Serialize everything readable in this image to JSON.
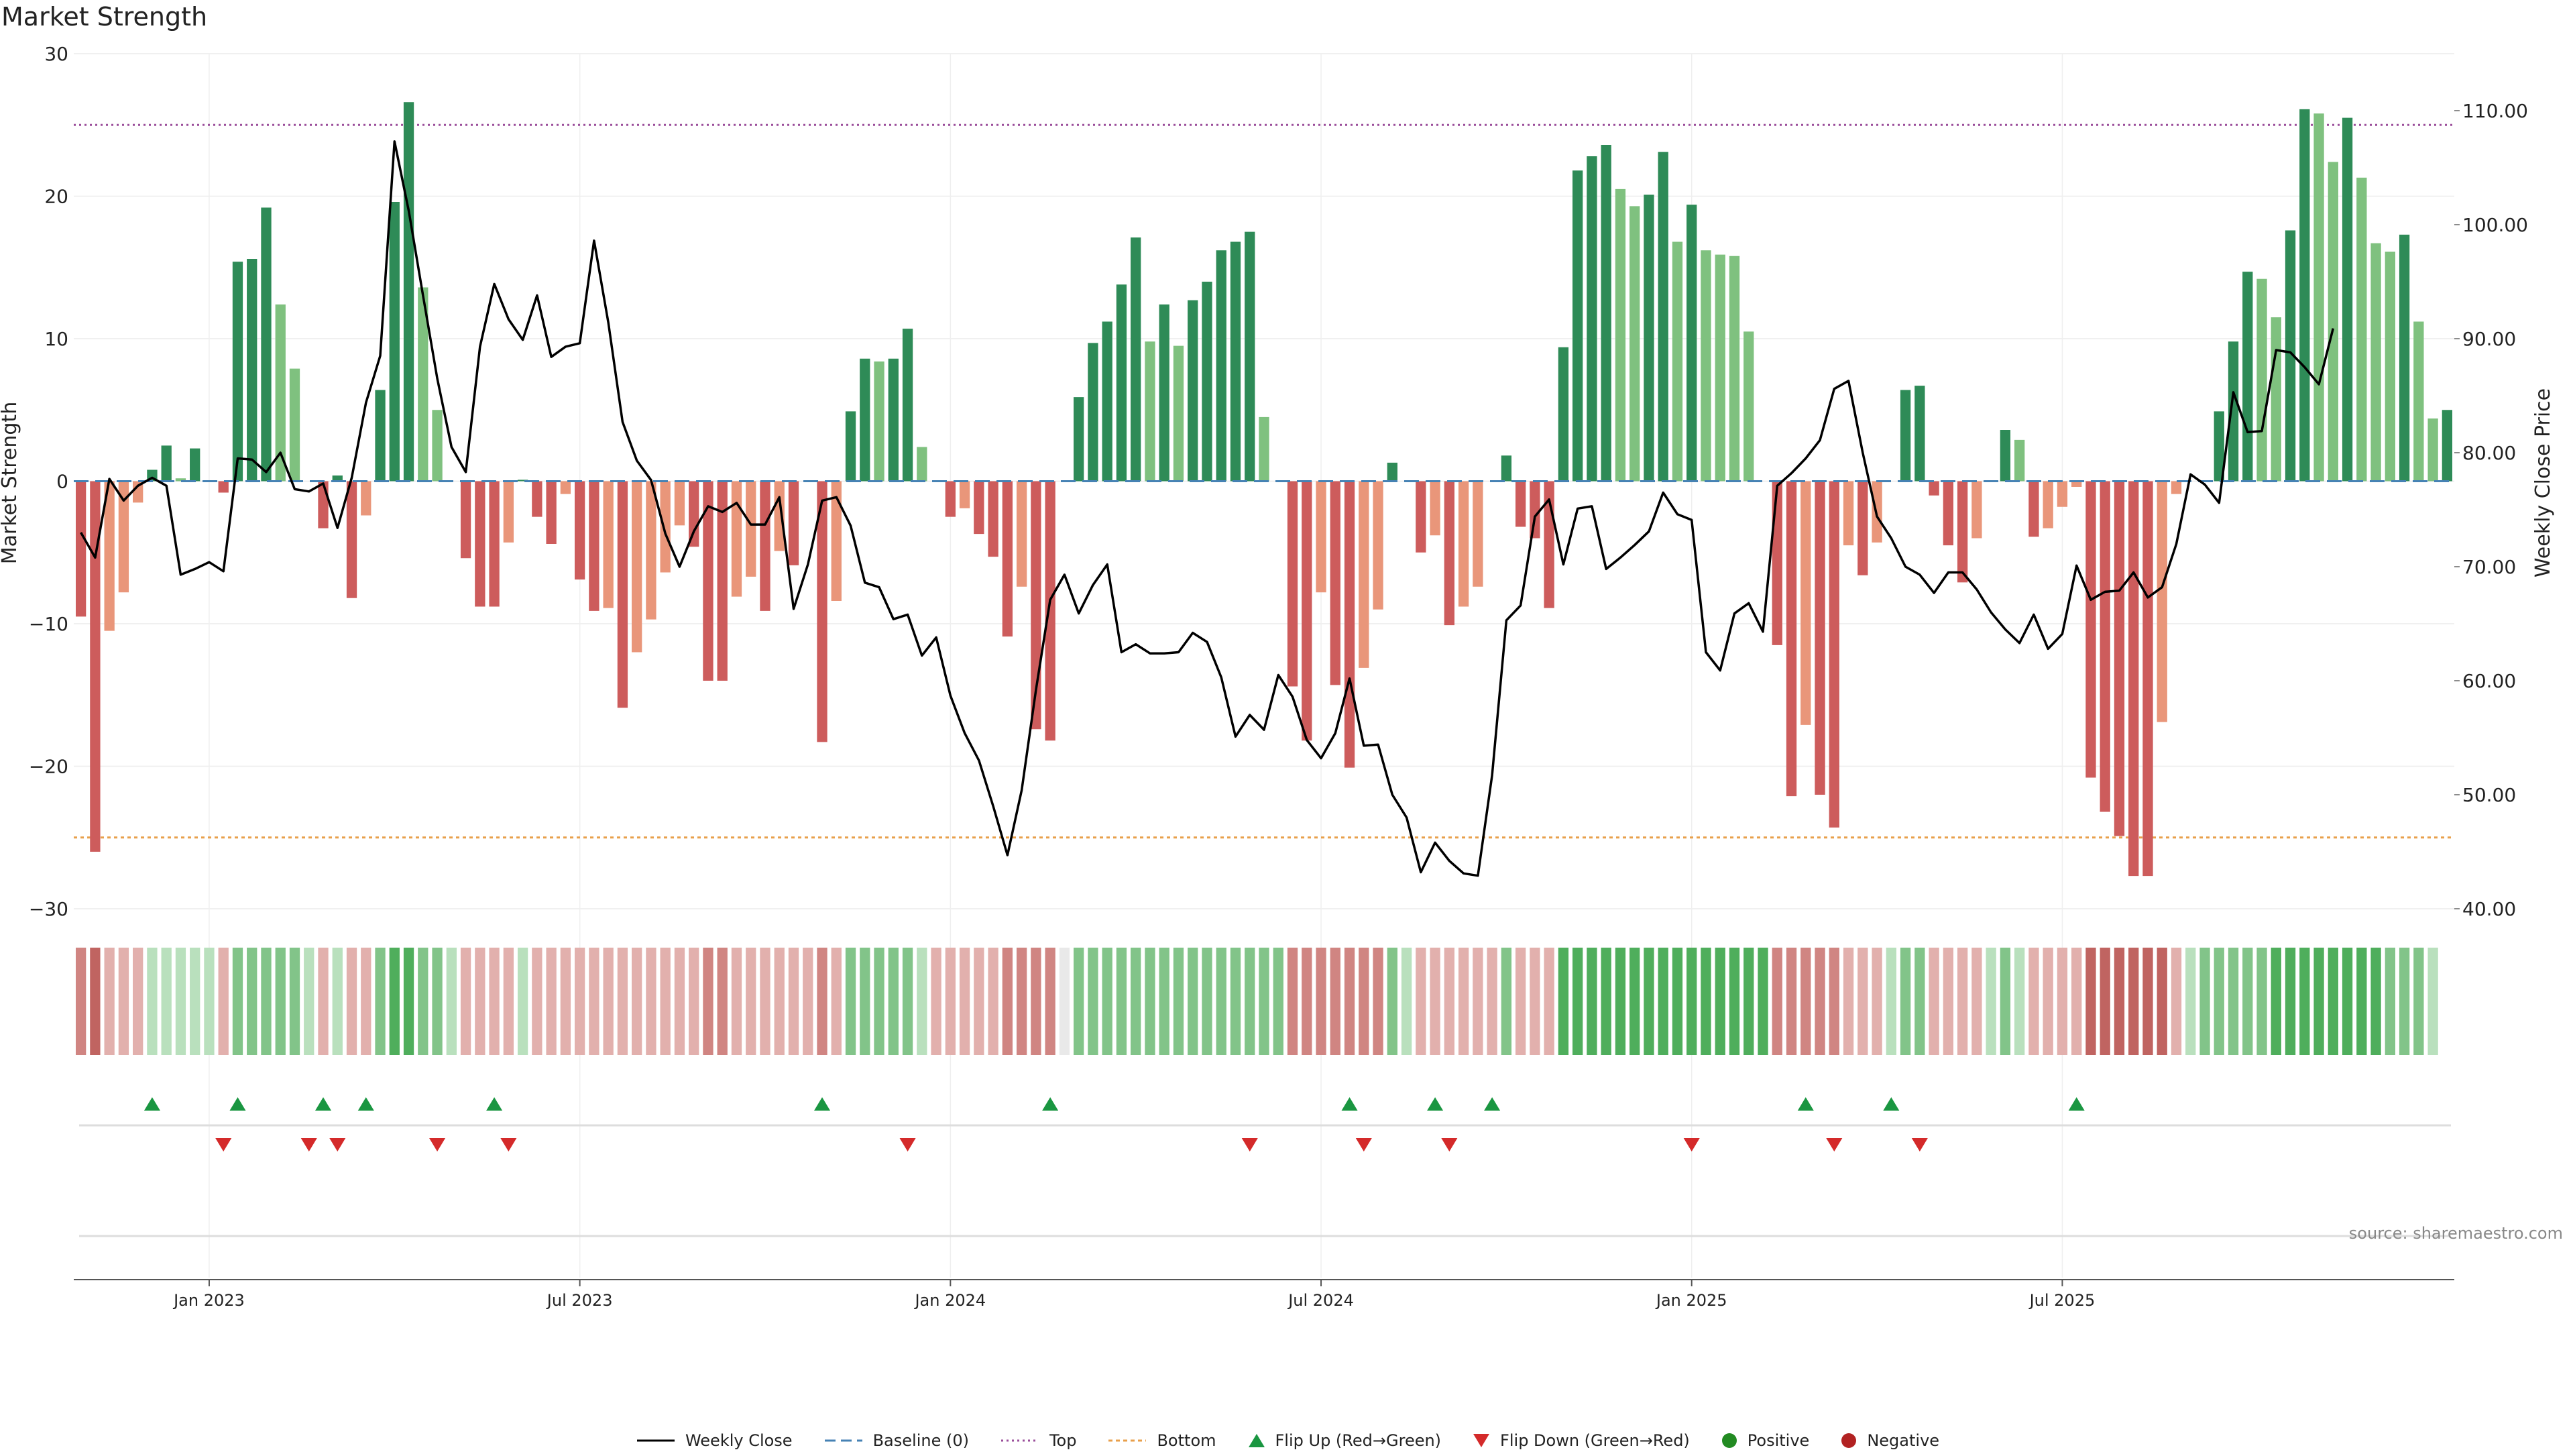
{
  "chart_data": {
    "type": "bar",
    "title": "Market Strength",
    "ylabel": "Market Strength",
    "y2label": "Weekly Close Price",
    "ylim": [
      -30,
      30
    ],
    "y2lim": [
      40,
      115
    ],
    "top_threshold": 25,
    "bottom_threshold": -25,
    "y_ticks": [
      30,
      20,
      10,
      0,
      -10,
      -20,
      -30
    ],
    "y_tick_labels": [
      "30",
      "20",
      "10",
      "0",
      "−10",
      "−20",
      "−30"
    ],
    "y2_ticks": [
      110,
      100,
      90,
      80,
      70,
      60,
      50,
      40
    ],
    "y2_tick_labels": [
      "110.00",
      "100.00",
      "90.00",
      "80.00",
      "70.00",
      "60.00",
      "50.00",
      "40.00"
    ],
    "x_ticks": [
      "Jan 2023",
      "Jul 2023",
      "Jan 2024",
      "Jul 2024",
      "Jan 2025",
      "Jul 2025"
    ],
    "x_tick_weeks": [
      9,
      35,
      61,
      87,
      113,
      139
    ],
    "strength": [
      -9.5,
      -26,
      -10.5,
      -7.8,
      -1.5,
      0.8,
      2.5,
      0.2,
      2.3,
      0,
      -0.8,
      15.4,
      15.6,
      19.2,
      12.4,
      7.9,
      0,
      -3.3,
      0.4,
      -8.2,
      -2.4,
      6.4,
      19.6,
      26.6,
      13.6,
      5,
      0,
      -5.4,
      -8.8,
      -8.8,
      -4.3,
      0.1,
      -2.5,
      -4.4,
      -0.9,
      -6.9,
      -9.1,
      -8.9,
      -15.9,
      -12,
      -9.7,
      -6.4,
      -3.1,
      -4.6,
      -14,
      -14,
      -8.1,
      -6.7,
      -9.1,
      -4.9,
      -5.9,
      0,
      -18.3,
      -8.4,
      4.9,
      8.6,
      8.4,
      8.6,
      10.7,
      2.4,
      0,
      -2.5,
      -1.9,
      -3.7,
      -5.3,
      -10.9,
      -7.4,
      -17.4,
      -18.2,
      0,
      5.9,
      9.7,
      11.2,
      13.8,
      17.1,
      9.8,
      12.4,
      9.5,
      12.7,
      14,
      16.2,
      16.8,
      17.5,
      4.5,
      0,
      -14.4,
      -18.2,
      -7.8,
      -14.3,
      -20.1,
      -13.1,
      -9,
      1.3,
      0,
      -5,
      -3.8,
      -10.1,
      -8.8,
      -7.4,
      0,
      1.8,
      -3.2,
      -4,
      -8.9,
      9.4,
      21.8,
      22.8,
      23.6,
      20.5,
      19.3,
      20.1,
      23.1,
      16.8,
      19.4,
      16.2,
      15.9,
      15.8,
      10.5,
      0,
      -11.5,
      -22.1,
      -17.1,
      -22,
      -24.3,
      -4.5,
      -6.6,
      -4.3,
      0,
      6.4,
      6.7,
      -1,
      -4.5,
      -7.1,
      -4,
      0,
      3.6,
      2.9,
      -3.9,
      -3.3,
      -1.8,
      -0.4,
      -20.8,
      -23.2,
      -24.9,
      -27.7,
      -27.7,
      -16.9,
      -0.9,
      0,
      0,
      4.9,
      9.8,
      14.7,
      14.2,
      11.5,
      17.6,
      26.1,
      25.8,
      22.4,
      25.5,
      21.3,
      16.7,
      16.1,
      17.3,
      11.2,
      4.4,
      5
    ],
    "weekly_close": [
      73,
      70.8,
      77.7,
      75.8,
      77.1,
      77.8,
      77.1,
      69.3,
      69.8,
      70.4,
      69.6,
      79.5,
      79.4,
      78.3,
      80,
      76.8,
      76.6,
      77.3,
      73.4,
      77.8,
      84.4,
      88.5,
      107.3,
      101.2,
      93.8,
      86.5,
      80.5,
      78.3,
      89.3,
      94.8,
      91.7,
      89.9,
      93.8,
      88.4,
      89.3,
      89.6,
      98.6,
      91.4,
      82.7,
      79.3,
      77.6,
      72.9,
      70,
      73.1,
      75.3,
      74.8,
      75.6,
      73.7,
      73.7,
      76.1,
      66.3,
      70.2,
      75.8,
      76.1,
      73.6,
      68.6,
      68.2,
      65.4,
      65.8,
      62.2,
      63.8,
      58.7,
      55.4,
      53,
      49,
      44.7,
      50.4,
      59.2,
      67.1,
      69.3,
      65.9,
      68.4,
      70.2,
      62.5,
      63.2,
      62.4,
      62.4,
      62.5,
      64.2,
      63.4,
      60.3,
      55.1,
      57,
      55.7,
      60.5,
      58.6,
      54.8,
      53.2,
      55.4,
      60.2,
      54.3,
      54.4,
      50,
      48,
      43.2,
      45.8,
      44.2,
      43.1,
      42.9,
      51.7,
      65.3,
      66.6,
      74.4,
      75.9,
      70.2,
      75.1,
      75.3,
      69.8,
      70.8,
      71.9,
      73.1,
      76.5,
      74.6,
      74.1,
      62.5,
      60.9,
      65.9,
      66.8,
      64.3,
      77.1,
      78.2,
      79.5,
      81.1,
      85.6,
      86.3,
      80,
      74.4,
      72.5,
      70,
      69.3,
      67.7,
      69.5,
      69.5,
      68,
      66,
      64.5,
      63.3,
      65.8,
      62.8,
      64.1,
      70.1,
      67.1,
      67.8,
      67.9,
      69.5,
      67.3,
      68.2,
      72,
      78.1,
      77.2,
      75.6,
      85.3,
      81.8,
      81.9,
      89,
      88.8,
      87.5,
      86,
      90.9
    ],
    "shade_levels": [
      -2,
      -3,
      -1,
      -1,
      -1,
      1,
      1,
      1,
      1,
      1,
      -1,
      2,
      2,
      2,
      2,
      2,
      1,
      -1,
      1,
      -1,
      -1,
      2,
      3,
      3,
      2,
      2,
      1,
      -1,
      -1,
      -1,
      -1,
      1,
      -1,
      -1,
      -1,
      -1,
      -1,
      -1,
      -1,
      -1,
      -1,
      -1,
      -1,
      -1,
      -2,
      -2,
      -1,
      -1,
      -1,
      -1,
      -1,
      -1,
      -2,
      -1,
      2,
      2,
      2,
      2,
      2,
      1,
      -1,
      -1,
      -1,
      -1,
      -1,
      -2,
      -2,
      -2,
      -2,
      0,
      2,
      2,
      2,
      2,
      2,
      2,
      2,
      2,
      2,
      2,
      2,
      2,
      2,
      2,
      2,
      -2,
      -2,
      -2,
      -2,
      -2,
      -2,
      -2,
      2,
      1,
      -1,
      -1,
      -1,
      -1,
      -1,
      -1,
      2,
      -1,
      -1,
      -1,
      3,
      3,
      3,
      3,
      3,
      3,
      3,
      3,
      3,
      3,
      3,
      3,
      3,
      3,
      3,
      -2,
      -2,
      -2,
      -2,
      -2,
      -1,
      -1,
      -1,
      1,
      2,
      2,
      -1,
      -1,
      -1,
      -1,
      1,
      2,
      1,
      -1,
      -1,
      -1,
      -1,
      -3,
      -3,
      -3,
      -3,
      -3,
      -3,
      -1,
      1,
      2,
      2,
      2,
      2,
      2,
      3,
      3,
      3,
      3,
      3,
      3,
      3,
      3,
      2,
      2,
      2,
      1
    ],
    "flip_up_weeks": [
      5,
      11,
      17,
      20,
      29,
      52,
      68,
      89,
      95,
      99,
      121,
      127,
      140
    ],
    "flip_down_weeks": [
      10,
      16,
      18,
      25,
      30,
      58,
      82,
      90,
      96,
      113,
      123,
      129
    ],
    "legend": [
      "Weekly Close",
      "Baseline (0)",
      "Top",
      "Bottom",
      "Flip Up (Red→Green)",
      "Flip Down (Green→Red)",
      "Positive",
      "Negative"
    ],
    "source": "source: sharemaestro.com",
    "colors": {
      "dark_green": "#2e8b57",
      "light_green": "#7fc17f",
      "dark_red": "#cd5c5c",
      "light_red": "#e9967a",
      "close_line": "#000000",
      "baseline": "#4682b4",
      "top": "#9b4f9b",
      "bottom": "#e8a04c",
      "flip_up": "#1a9641",
      "flip_down": "#d42a2a",
      "positive": "#228b22",
      "negative": "#b22222"
    }
  }
}
